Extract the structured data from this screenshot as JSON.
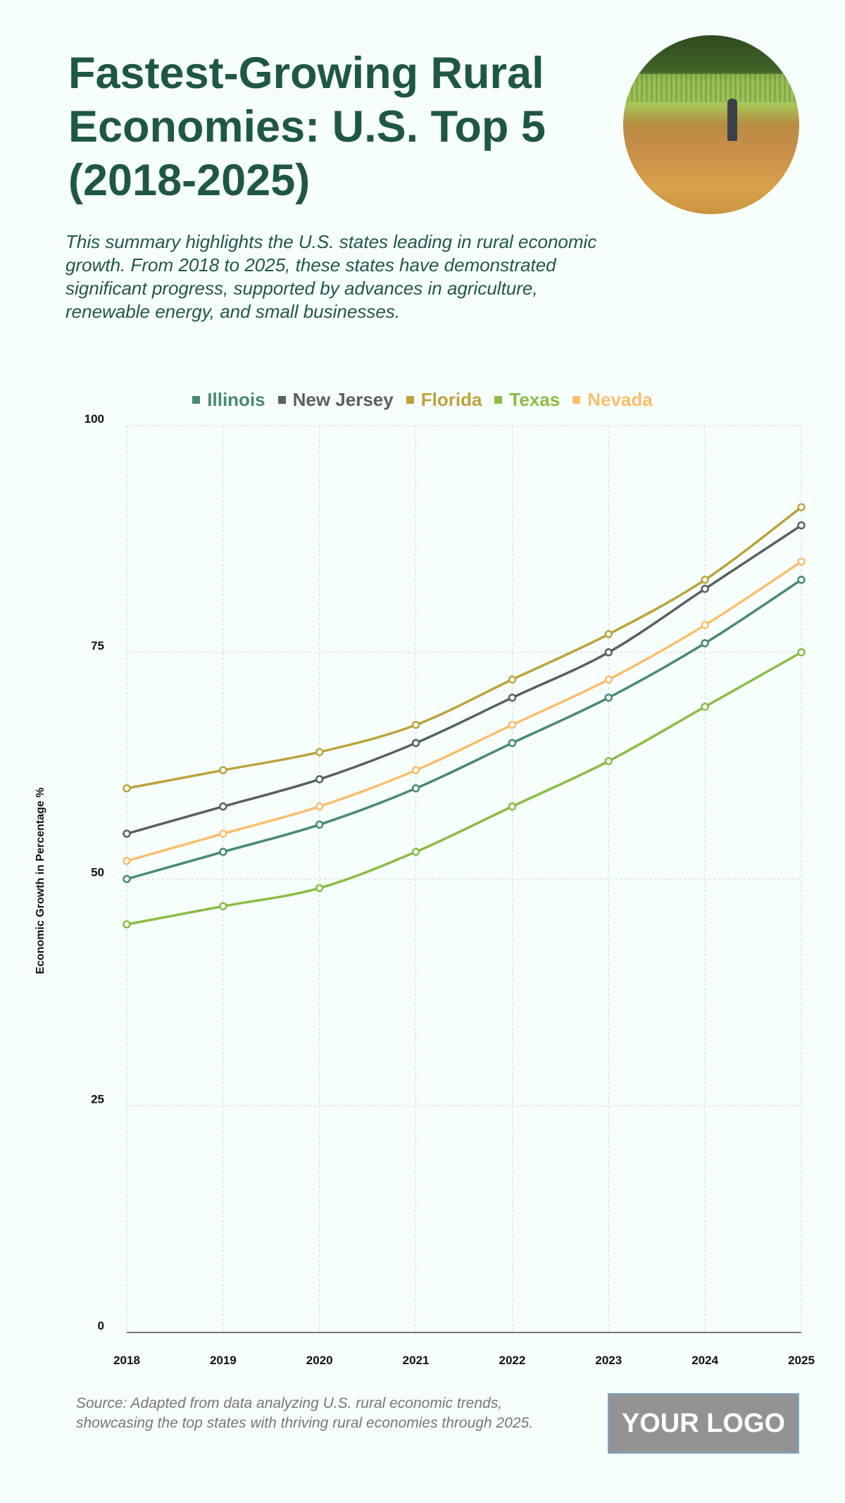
{
  "header": {
    "title": "Fastest-Growing Rural Economies: U.S. Top 5 (2018-2025)",
    "subtitle": "This summary highlights the U.S. states leading in rural economic growth. From 2018 to 2025, these states have demonstrated significant progress, supported by advances in agriculture, renewable energy, and small businesses."
  },
  "chart_data": {
    "type": "line",
    "title": "",
    "xlabel": "",
    "ylabel": "Economic Growth in Percentage %",
    "x": [
      "2018",
      "2019",
      "2020",
      "2021",
      "2022",
      "2023",
      "2024",
      "2025"
    ],
    "ylim": [
      0,
      100
    ],
    "yticks": [
      0,
      25,
      50,
      75,
      100
    ],
    "grid": true,
    "legend_position": "top-center",
    "series": [
      {
        "name": "Illinois",
        "color": "#478a72",
        "values": [
          50,
          53,
          56,
          60,
          65,
          70,
          76,
          83
        ]
      },
      {
        "name": "New Jersey",
        "color": "#55625d",
        "values": [
          55,
          58,
          61,
          65,
          70,
          75,
          82,
          89
        ]
      },
      {
        "name": "Florida",
        "color": "#bba33b",
        "values": [
          60,
          62,
          64,
          67,
          72,
          77,
          83,
          91
        ]
      },
      {
        "name": "Texas",
        "color": "#8bbb44",
        "values": [
          45,
          47,
          49,
          53,
          58,
          63,
          69,
          75
        ]
      },
      {
        "name": "Nevada",
        "color": "#fbbd6c",
        "values": [
          52,
          55,
          58,
          62,
          67,
          72,
          78,
          85
        ]
      }
    ]
  },
  "footer": {
    "source": "Source: Adapted from data analyzing U.S. rural economic trends, showcasing the top states with thriving rural economies through 2025.",
    "logo": "YOUR LOGO"
  }
}
